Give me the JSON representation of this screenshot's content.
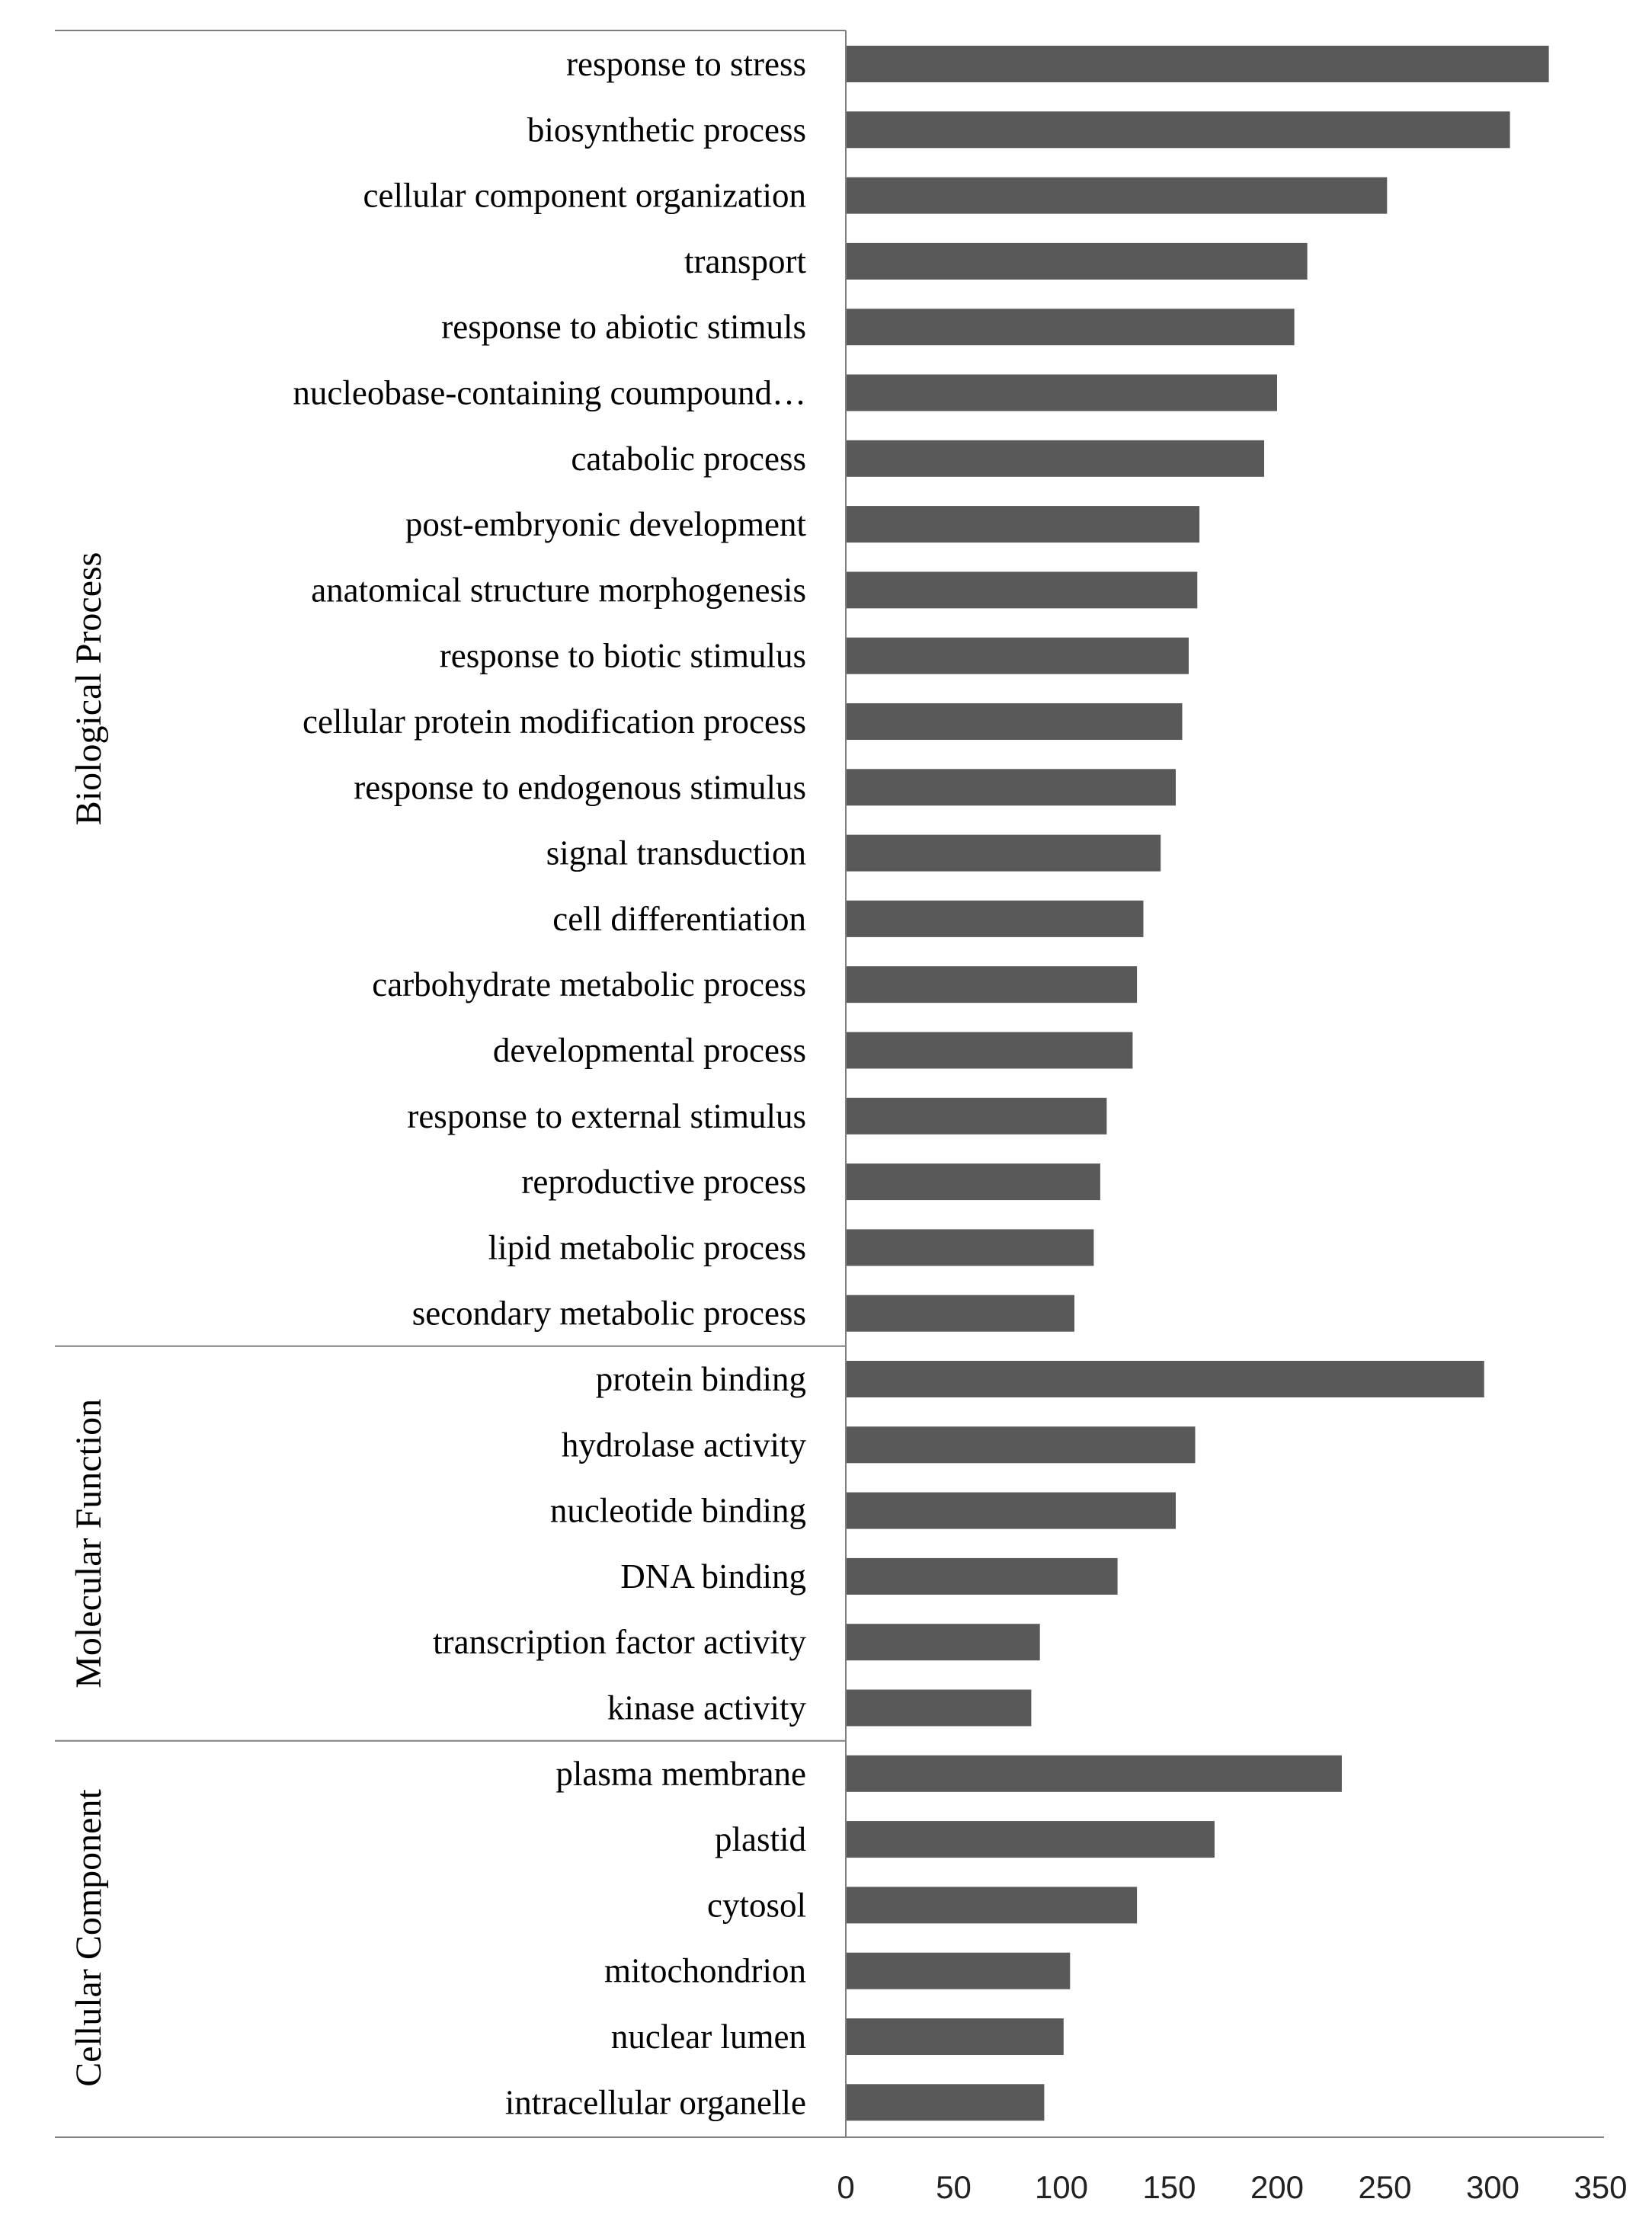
{
  "chart_data": {
    "type": "bar",
    "orientation": "horizontal",
    "title": "",
    "xlabel": "",
    "ylabel": "",
    "xlim": [
      0,
      350
    ],
    "xticks": [
      0,
      50,
      100,
      150,
      200,
      250,
      300,
      350
    ],
    "grid": false,
    "legend": "none",
    "bar_color": "#595959",
    "groups": [
      {
        "name": "Biological Process",
        "categories": [
          "response to stress",
          "biosynthetic process",
          "cellular component organization",
          "transport",
          "response to abiotic stimuls",
          "nucleobase-containing coumpound…",
          "catabolic process",
          "post-embryonic development",
          "anatomical structure morphogenesis",
          "response to biotic stimulus",
          "cellular protein modification process",
          "response to endogenous stimulus",
          "signal transduction",
          "cell differentiation",
          "carbohydrate metabolic process",
          "developmental process",
          "response to external stimulus",
          "reproductive process",
          "lipid metabolic process",
          "secondary metabolic process"
        ],
        "values": [
          326,
          308,
          251,
          214,
          208,
          200,
          194,
          164,
          163,
          159,
          156,
          153,
          146,
          138,
          135,
          133,
          121,
          118,
          115,
          106
        ]
      },
      {
        "name": "Molecular Function",
        "categories": [
          "protein binding",
          "hydrolase activity",
          "nucleotide binding",
          "DNA binding",
          "transcription factor activity",
          "kinase activity"
        ],
        "values": [
          296,
          162,
          153,
          126,
          90,
          86
        ]
      },
      {
        "name": "Cellular Component",
        "categories": [
          "plasma membrane",
          "plastid",
          "cytosol",
          "mitochondrion",
          "nuclear lumen",
          "intracellular organelle"
        ],
        "values": [
          230,
          171,
          135,
          104,
          101,
          92
        ]
      }
    ]
  }
}
